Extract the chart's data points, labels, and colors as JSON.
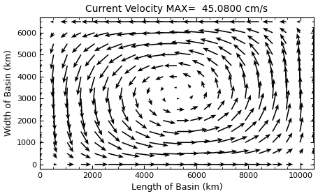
{
  "title": "Current Velocity MAX=  45.0800 cm/s",
  "xlabel": "Length of Basin (km)",
  "ylabel": "Width of Basin (km)",
  "xlim": [
    0,
    10500
  ],
  "ylim": [
    -200,
    6700
  ],
  "xticks": [
    0,
    2000,
    4000,
    6000,
    8000,
    10000
  ],
  "yticks": [
    0,
    1000,
    2000,
    3000,
    4000,
    5000,
    6000
  ],
  "nx": 21,
  "ny": 14,
  "x_max": 10500,
  "y_max": 6500,
  "max_vel": 45.08,
  "bg_color": "white",
  "arrow_color": "black",
  "title_fontsize": 10,
  "label_fontsize": 9
}
